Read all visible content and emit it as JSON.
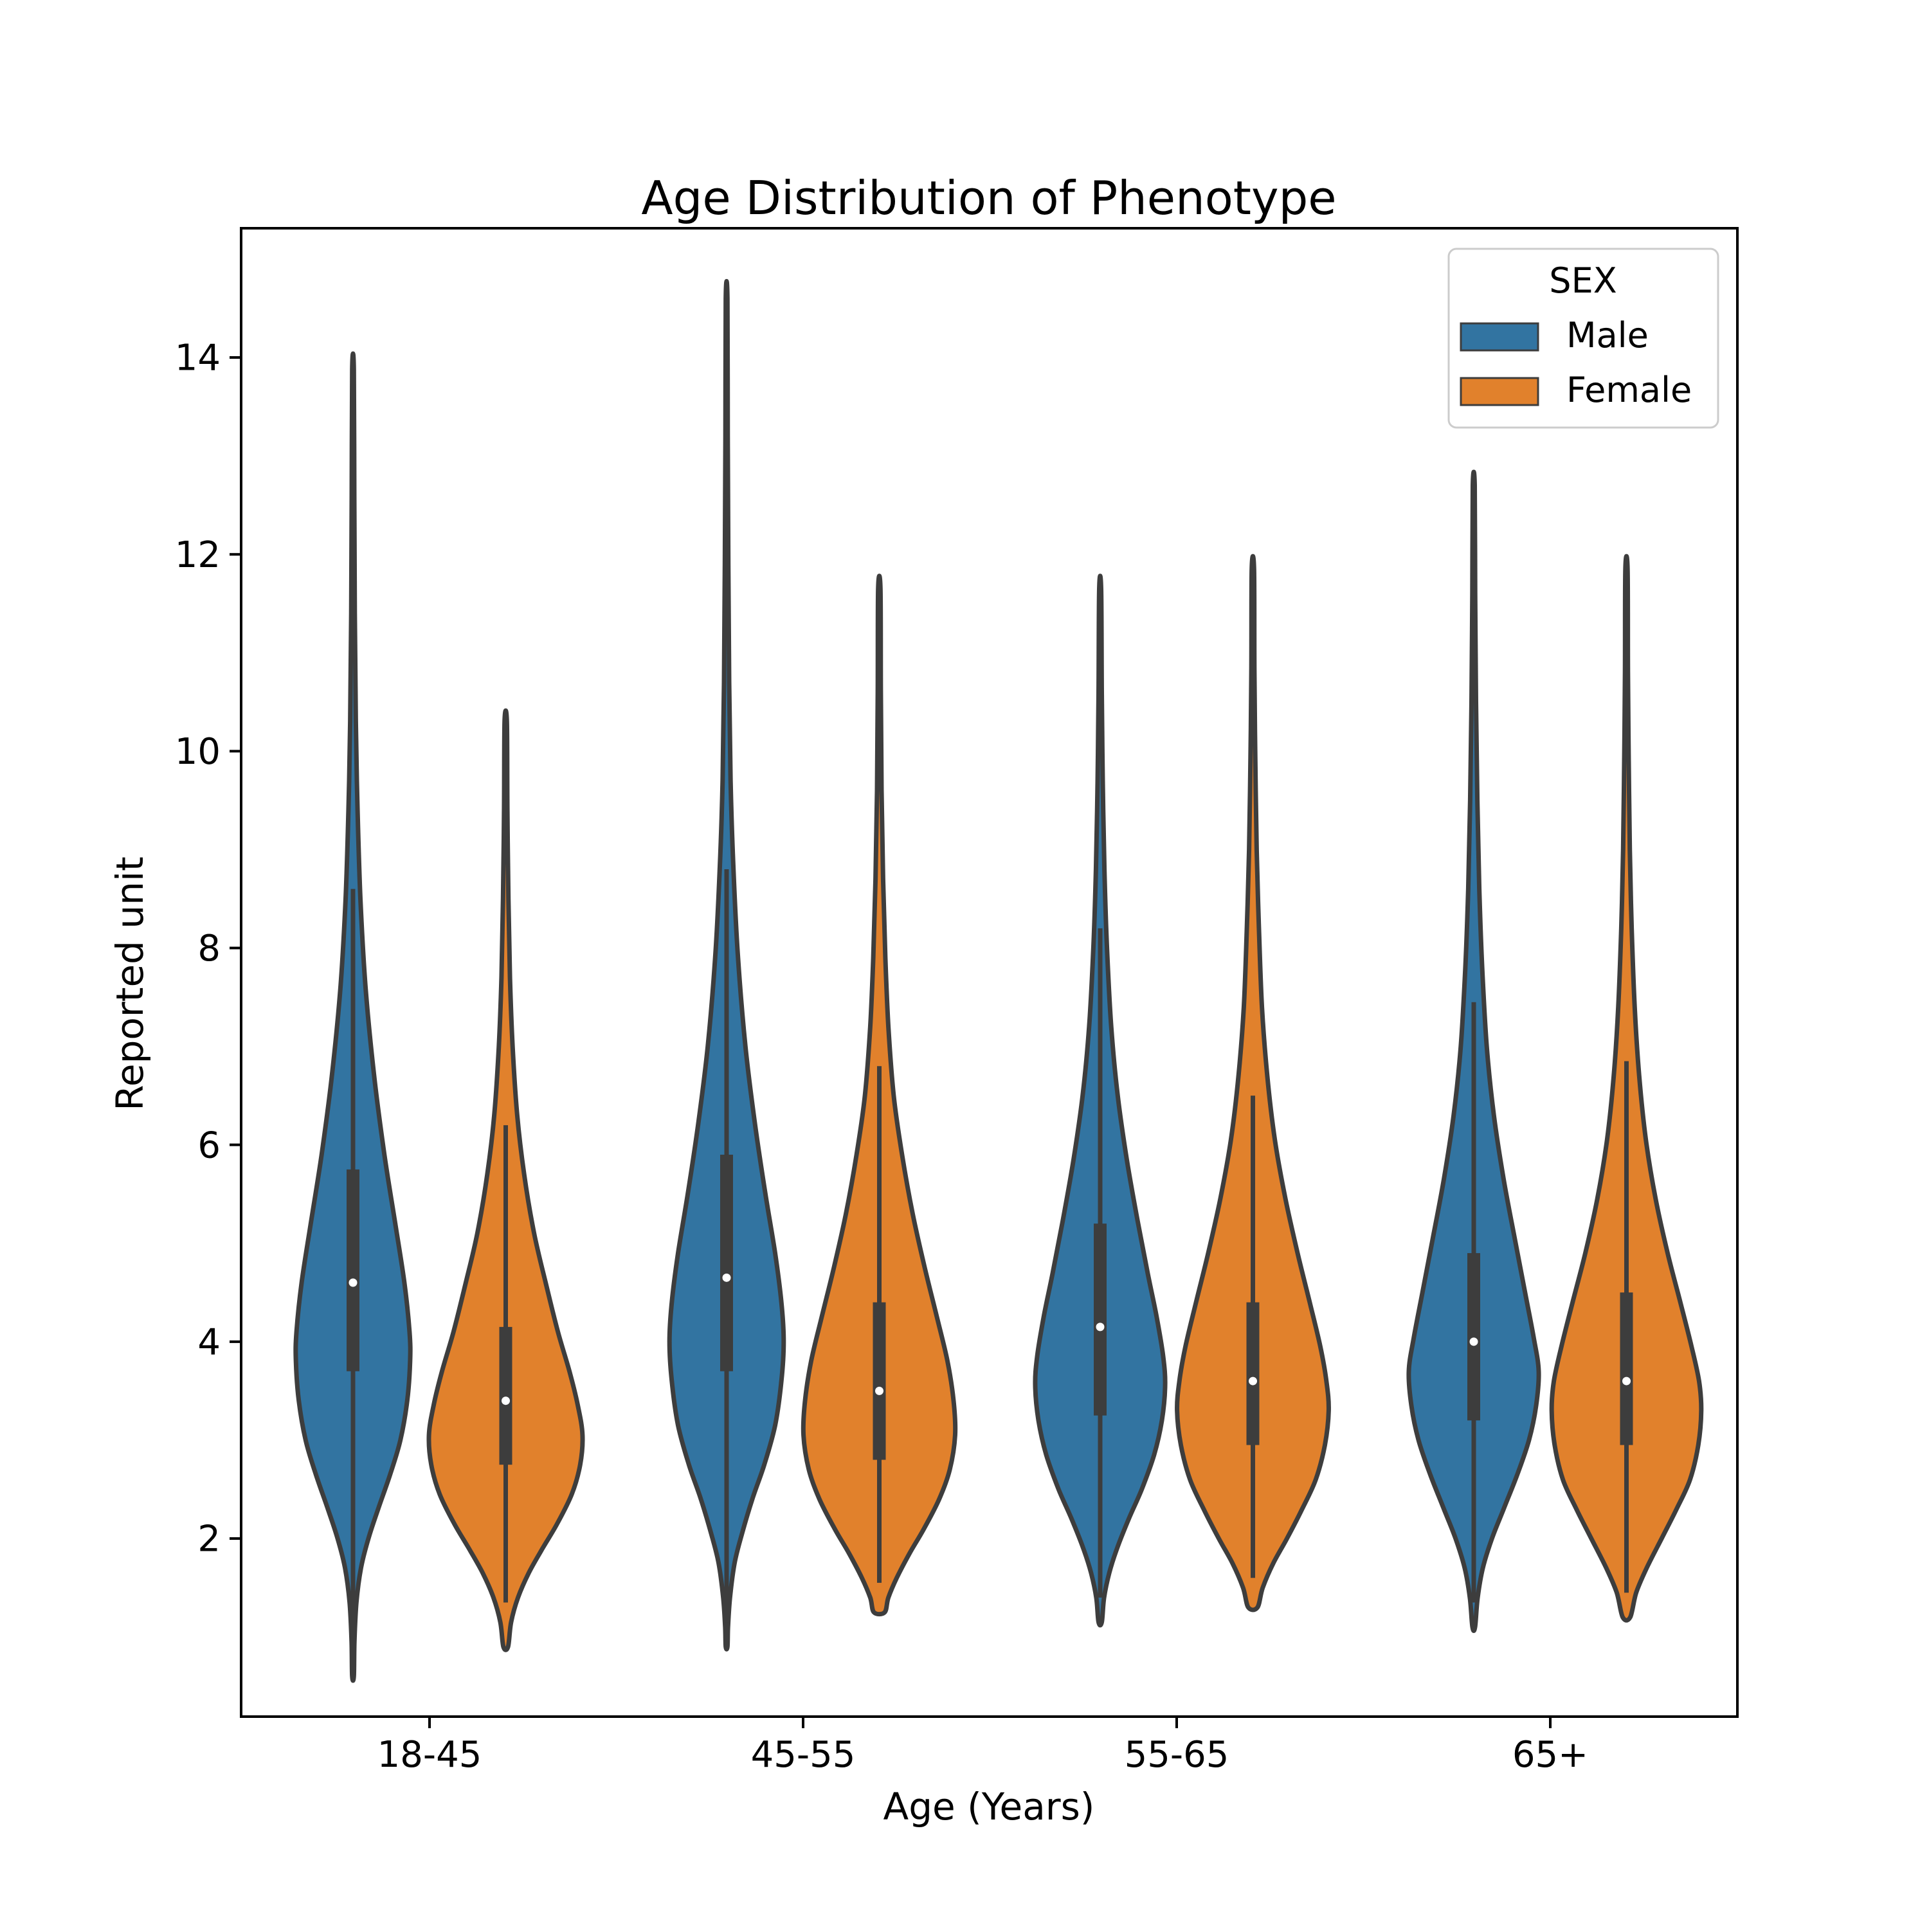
{
  "figure": {
    "background": "#ffffff"
  },
  "title": "Age Distribution of Phenotype",
  "axes": {
    "xlabel": "Age (Years)",
    "ylabel": "Reported unit",
    "y_tick_labels": [
      "2",
      "4",
      "6",
      "8",
      "10",
      "12",
      "14"
    ],
    "x_tick_labels": [
      "18-45",
      "45-55",
      "55-65",
      "65+"
    ]
  },
  "legend": {
    "title": "SEX",
    "entries": [
      {
        "label": "Male",
        "color": "#3274a1"
      },
      {
        "label": "Female",
        "color": "#e1812c"
      }
    ]
  },
  "style": {
    "male_color": "#3274a1",
    "female_color": "#e1812c",
    "edge_color": "#3d3d3d",
    "box_color": "#3d3d3d",
    "median_color": "#ffffff",
    "spine_color": "#000000",
    "legend_frame_color": "#cccccc"
  },
  "chart_data": {
    "type": "violin",
    "title": "Age Distribution of Phenotype",
    "xlabel": "Age (Years)",
    "ylabel": "Reported unit",
    "categories": [
      "18-45",
      "45-55",
      "55-65",
      "65+"
    ],
    "hue": {
      "name": "SEX",
      "levels": [
        "Male",
        "Female"
      ]
    },
    "y_ticks": [
      2,
      4,
      6,
      8,
      10,
      12,
      14
    ],
    "y_range_shown": [
      0.2,
      15.3
    ],
    "legend_position": "upper right",
    "grid": false,
    "violins": [
      {
        "category": "18-45",
        "sex": "Male",
        "median": 4.6,
        "q1": 3.7,
        "q3": 5.75,
        "whisker_low": 1.1,
        "whisker_high": 8.6,
        "kde_min": 0.6,
        "kde_max": 13.9,
        "max_halfwidth_units": 0.58,
        "density": [
          [
            13.88,
            0.015
          ],
          [
            12.6,
            0.022
          ],
          [
            11.4,
            0.032
          ],
          [
            10.3,
            0.05
          ],
          [
            9.4,
            0.08
          ],
          [
            8.5,
            0.13
          ],
          [
            7.6,
            0.22
          ],
          [
            6.7,
            0.37
          ],
          [
            5.9,
            0.55
          ],
          [
            5.2,
            0.74
          ],
          [
            4.6,
            0.9
          ],
          [
            4.1,
            0.99
          ],
          [
            3.8,
            1.0
          ],
          [
            3.4,
            0.95
          ],
          [
            3.0,
            0.83
          ],
          [
            2.65,
            0.65
          ],
          [
            2.3,
            0.44
          ],
          [
            2.0,
            0.27
          ],
          [
            1.7,
            0.14
          ],
          [
            1.35,
            0.06
          ],
          [
            0.95,
            0.025
          ],
          [
            0.6,
            0.015
          ]
        ]
      },
      {
        "category": "18-45",
        "sex": "Female",
        "median": 3.4,
        "q1": 2.75,
        "q3": 4.15,
        "whisker_low": 1.35,
        "whisker_high": 6.2,
        "kde_min": 0.9,
        "kde_max": 10.3,
        "max_halfwidth_units": 0.78,
        "density": [
          [
            10.3,
            0.015
          ],
          [
            9.4,
            0.022
          ],
          [
            8.5,
            0.035
          ],
          [
            7.7,
            0.055
          ],
          [
            7.0,
            0.09
          ],
          [
            6.3,
            0.15
          ],
          [
            5.7,
            0.24
          ],
          [
            5.1,
            0.37
          ],
          [
            4.6,
            0.52
          ],
          [
            4.1,
            0.68
          ],
          [
            3.7,
            0.83
          ],
          [
            3.35,
            0.94
          ],
          [
            3.05,
            1.0
          ],
          [
            2.75,
            0.97
          ],
          [
            2.45,
            0.86
          ],
          [
            2.15,
            0.67
          ],
          [
            1.9,
            0.48
          ],
          [
            1.65,
            0.3
          ],
          [
            1.4,
            0.16
          ],
          [
            1.15,
            0.07
          ],
          [
            0.9,
            0.03
          ]
        ]
      },
      {
        "category": "45-55",
        "sex": "Male",
        "median": 4.65,
        "q1": 3.7,
        "q3": 5.9,
        "whisker_low": 1.15,
        "whisker_high": 8.8,
        "kde_min": 0.9,
        "kde_max": 14.6,
        "max_halfwidth_units": 0.58,
        "density": [
          [
            14.6,
            0.015
          ],
          [
            13.2,
            0.02
          ],
          [
            11.9,
            0.03
          ],
          [
            10.7,
            0.045
          ],
          [
            9.7,
            0.07
          ],
          [
            8.8,
            0.12
          ],
          [
            7.9,
            0.2
          ],
          [
            7.0,
            0.33
          ],
          [
            6.2,
            0.5
          ],
          [
            5.5,
            0.68
          ],
          [
            4.9,
            0.85
          ],
          [
            4.4,
            0.96
          ],
          [
            4.0,
            1.0
          ],
          [
            3.6,
            0.96
          ],
          [
            3.15,
            0.85
          ],
          [
            2.75,
            0.66
          ],
          [
            2.4,
            0.45
          ],
          [
            2.05,
            0.27
          ],
          [
            1.75,
            0.14
          ],
          [
            1.4,
            0.06
          ],
          [
            1.1,
            0.025
          ],
          [
            0.9,
            0.015
          ]
        ]
      },
      {
        "category": "45-55",
        "sex": "Female",
        "median": 3.5,
        "q1": 2.8,
        "q3": 4.4,
        "whisker_low": 1.55,
        "whisker_high": 6.8,
        "kde_min": 1.25,
        "kde_max": 11.65,
        "max_halfwidth_units": 0.77,
        "density": [
          [
            11.65,
            0.015
          ],
          [
            10.6,
            0.02
          ],
          [
            9.6,
            0.03
          ],
          [
            8.7,
            0.05
          ],
          [
            7.9,
            0.08
          ],
          [
            7.2,
            0.12
          ],
          [
            6.5,
            0.19
          ],
          [
            5.9,
            0.3
          ],
          [
            5.3,
            0.44
          ],
          [
            4.75,
            0.6
          ],
          [
            4.25,
            0.76
          ],
          [
            3.8,
            0.9
          ],
          [
            3.4,
            0.98
          ],
          [
            3.05,
            1.0
          ],
          [
            2.7,
            0.93
          ],
          [
            2.4,
            0.79
          ],
          [
            2.1,
            0.59
          ],
          [
            1.85,
            0.4
          ],
          [
            1.6,
            0.23
          ],
          [
            1.4,
            0.12
          ],
          [
            1.25,
            0.07
          ]
        ]
      },
      {
        "category": "55-65",
        "sex": "Male",
        "median": 4.15,
        "q1": 3.25,
        "q3": 5.2,
        "whisker_low": 1.4,
        "whisker_high": 8.2,
        "kde_min": 1.15,
        "kde_max": 11.65,
        "max_halfwidth_units": 0.66,
        "density": [
          [
            11.65,
            0.015
          ],
          [
            10.6,
            0.025
          ],
          [
            9.7,
            0.04
          ],
          [
            8.8,
            0.065
          ],
          [
            8.0,
            0.105
          ],
          [
            7.2,
            0.17
          ],
          [
            6.5,
            0.27
          ],
          [
            5.85,
            0.41
          ],
          [
            5.25,
            0.57
          ],
          [
            4.7,
            0.73
          ],
          [
            4.25,
            0.87
          ],
          [
            3.85,
            0.97
          ],
          [
            3.55,
            1.0
          ],
          [
            3.2,
            0.95
          ],
          [
            2.85,
            0.83
          ],
          [
            2.5,
            0.64
          ],
          [
            2.2,
            0.44
          ],
          [
            1.9,
            0.26
          ],
          [
            1.65,
            0.14
          ],
          [
            1.4,
            0.06
          ],
          [
            1.15,
            0.025
          ]
        ]
      },
      {
        "category": "55-65",
        "sex": "Female",
        "median": 3.6,
        "q1": 2.95,
        "q3": 4.4,
        "whisker_low": 1.6,
        "whisker_high": 6.5,
        "kde_min": 1.3,
        "kde_max": 11.85,
        "max_halfwidth_units": 0.77,
        "density": [
          [
            11.85,
            0.015
          ],
          [
            10.8,
            0.02
          ],
          [
            9.9,
            0.032
          ],
          [
            9.0,
            0.05
          ],
          [
            8.2,
            0.08
          ],
          [
            7.4,
            0.12
          ],
          [
            6.7,
            0.19
          ],
          [
            6.05,
            0.29
          ],
          [
            5.45,
            0.43
          ],
          [
            4.9,
            0.59
          ],
          [
            4.4,
            0.75
          ],
          [
            3.95,
            0.89
          ],
          [
            3.6,
            0.97
          ],
          [
            3.3,
            1.0
          ],
          [
            2.95,
            0.95
          ],
          [
            2.6,
            0.83
          ],
          [
            2.3,
            0.65
          ],
          [
            2.0,
            0.45
          ],
          [
            1.75,
            0.27
          ],
          [
            1.5,
            0.13
          ],
          [
            1.3,
            0.06
          ]
        ]
      },
      {
        "category": "65+",
        "sex": "Male",
        "median": 4.0,
        "q1": 3.2,
        "q3": 4.9,
        "whisker_low": 1.35,
        "whisker_high": 7.45,
        "kde_min": 1.1,
        "kde_max": 12.7,
        "max_halfwidth_units": 0.66,
        "density": [
          [
            12.7,
            0.015
          ],
          [
            11.6,
            0.022
          ],
          [
            10.5,
            0.035
          ],
          [
            9.5,
            0.055
          ],
          [
            8.6,
            0.085
          ],
          [
            7.8,
            0.13
          ],
          [
            7.0,
            0.2
          ],
          [
            6.3,
            0.31
          ],
          [
            5.65,
            0.46
          ],
          [
            5.05,
            0.63
          ],
          [
            4.5,
            0.79
          ],
          [
            4.05,
            0.92
          ],
          [
            3.7,
            1.0
          ],
          [
            3.35,
            0.96
          ],
          [
            3.0,
            0.85
          ],
          [
            2.65,
            0.67
          ],
          [
            2.3,
            0.46
          ],
          [
            2.0,
            0.28
          ],
          [
            1.7,
            0.14
          ],
          [
            1.4,
            0.06
          ],
          [
            1.1,
            0.02
          ]
        ]
      },
      {
        "category": "65+",
        "sex": "Female",
        "median": 3.6,
        "q1": 2.95,
        "q3": 4.5,
        "whisker_low": 1.45,
        "whisker_high": 6.85,
        "kde_min": 1.2,
        "kde_max": 11.85,
        "max_halfwidth_units": 0.76,
        "density": [
          [
            11.85,
            0.015
          ],
          [
            10.8,
            0.02
          ],
          [
            9.9,
            0.03
          ],
          [
            9.0,
            0.045
          ],
          [
            8.2,
            0.07
          ],
          [
            7.4,
            0.11
          ],
          [
            6.7,
            0.17
          ],
          [
            6.05,
            0.26
          ],
          [
            5.45,
            0.39
          ],
          [
            4.9,
            0.55
          ],
          [
            4.4,
            0.72
          ],
          [
            3.95,
            0.87
          ],
          [
            3.6,
            0.97
          ],
          [
            3.3,
            1.0
          ],
          [
            2.95,
            0.96
          ],
          [
            2.6,
            0.85
          ],
          [
            2.3,
            0.67
          ],
          [
            2.0,
            0.47
          ],
          [
            1.7,
            0.27
          ],
          [
            1.45,
            0.13
          ],
          [
            1.2,
            0.05
          ]
        ]
      }
    ]
  }
}
